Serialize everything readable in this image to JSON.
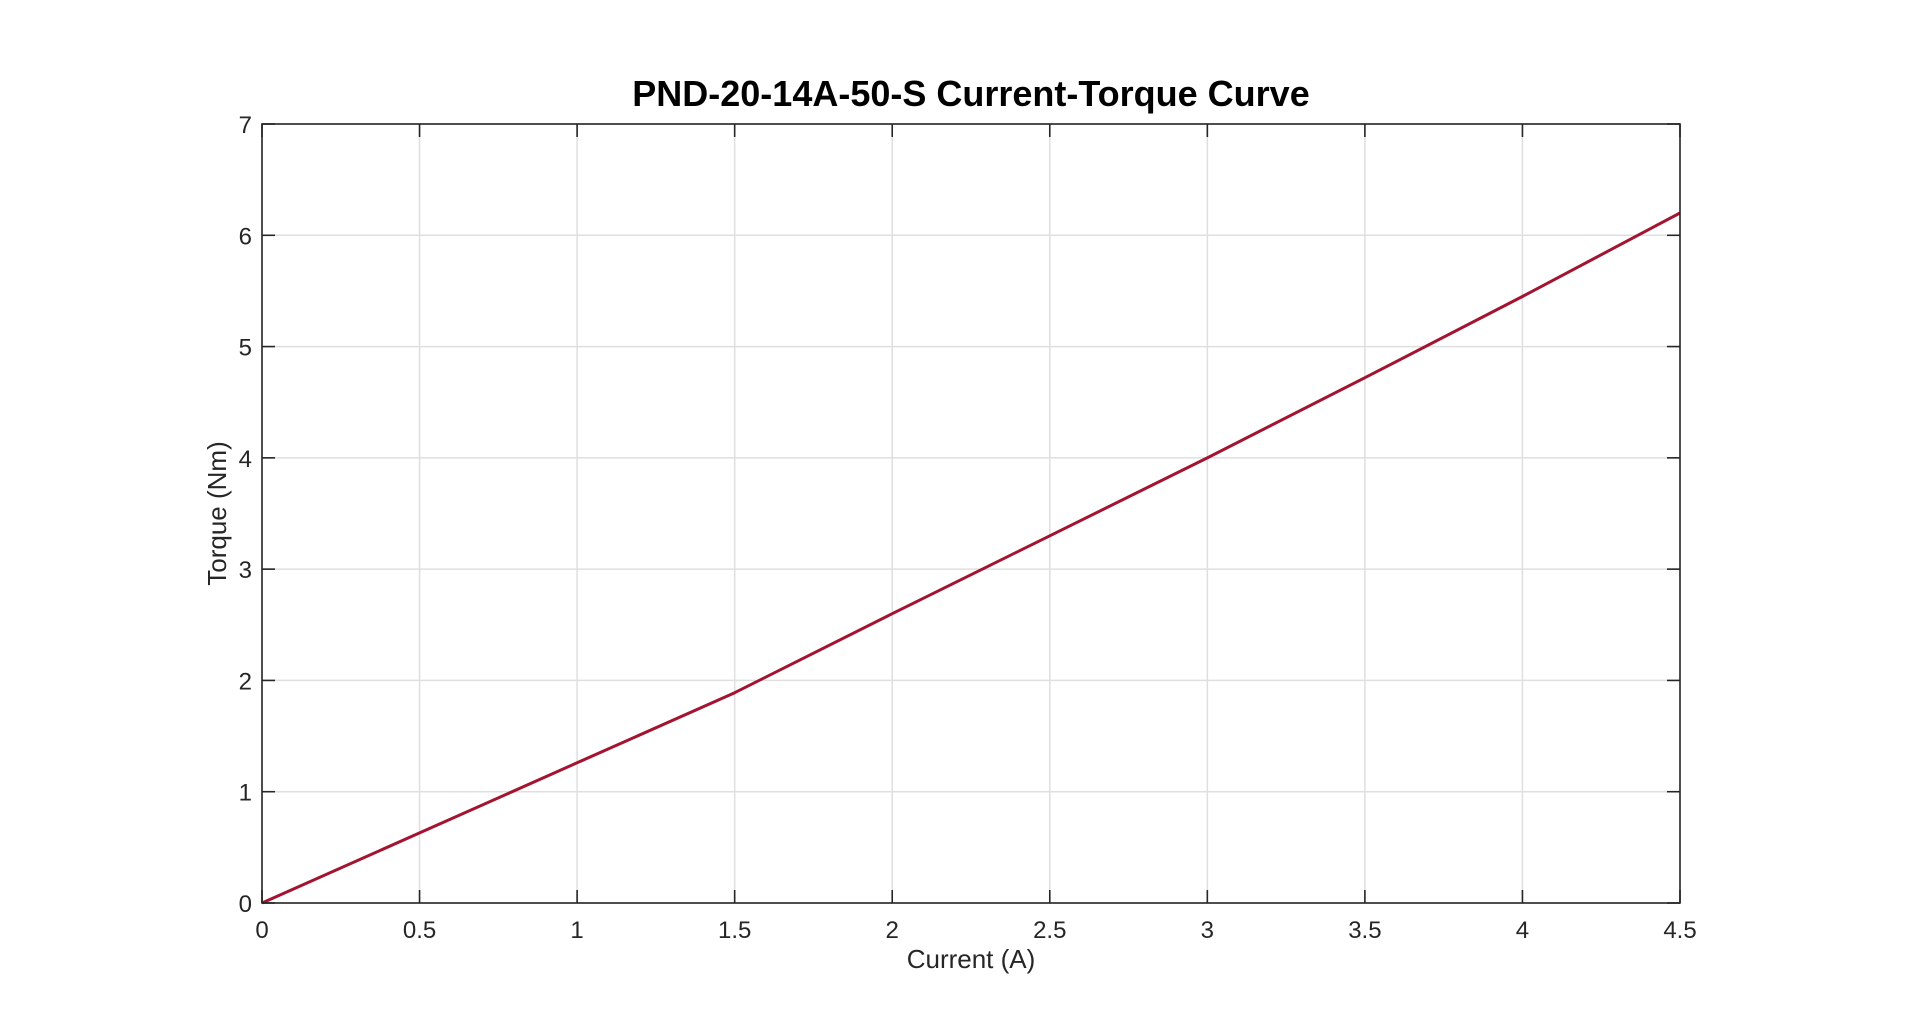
{
  "chart_data": {
    "type": "line",
    "title": "PND-20-14A-50-S Current-Torque Curve",
    "xlabel": "Current (A)",
    "ylabel": "Torque (Nm)",
    "xlim": [
      0,
      4.5
    ],
    "ylim": [
      0,
      7
    ],
    "xticks": [
      0,
      0.5,
      1,
      1.5,
      2,
      2.5,
      3,
      3.5,
      4,
      4.5
    ],
    "xtick_labels": [
      "0",
      "0.5",
      "1",
      "1.5",
      "2",
      "2.5",
      "3",
      "3.5",
      "4",
      "4.5"
    ],
    "yticks": [
      0,
      1,
      2,
      3,
      4,
      5,
      6,
      7
    ],
    "ytick_labels": [
      "0",
      "1",
      "2",
      "3",
      "4",
      "5",
      "6",
      "7"
    ],
    "grid": true,
    "line_color": "#a2142f",
    "series": [
      {
        "x": [
          0,
          0.5,
          1,
          1.5,
          2,
          2.5,
          3,
          3.5,
          4,
          4.5
        ],
        "y": [
          0,
          0.63,
          1.26,
          1.89,
          2.6,
          3.3,
          4.0,
          4.72,
          5.45,
          6.2
        ]
      }
    ]
  }
}
